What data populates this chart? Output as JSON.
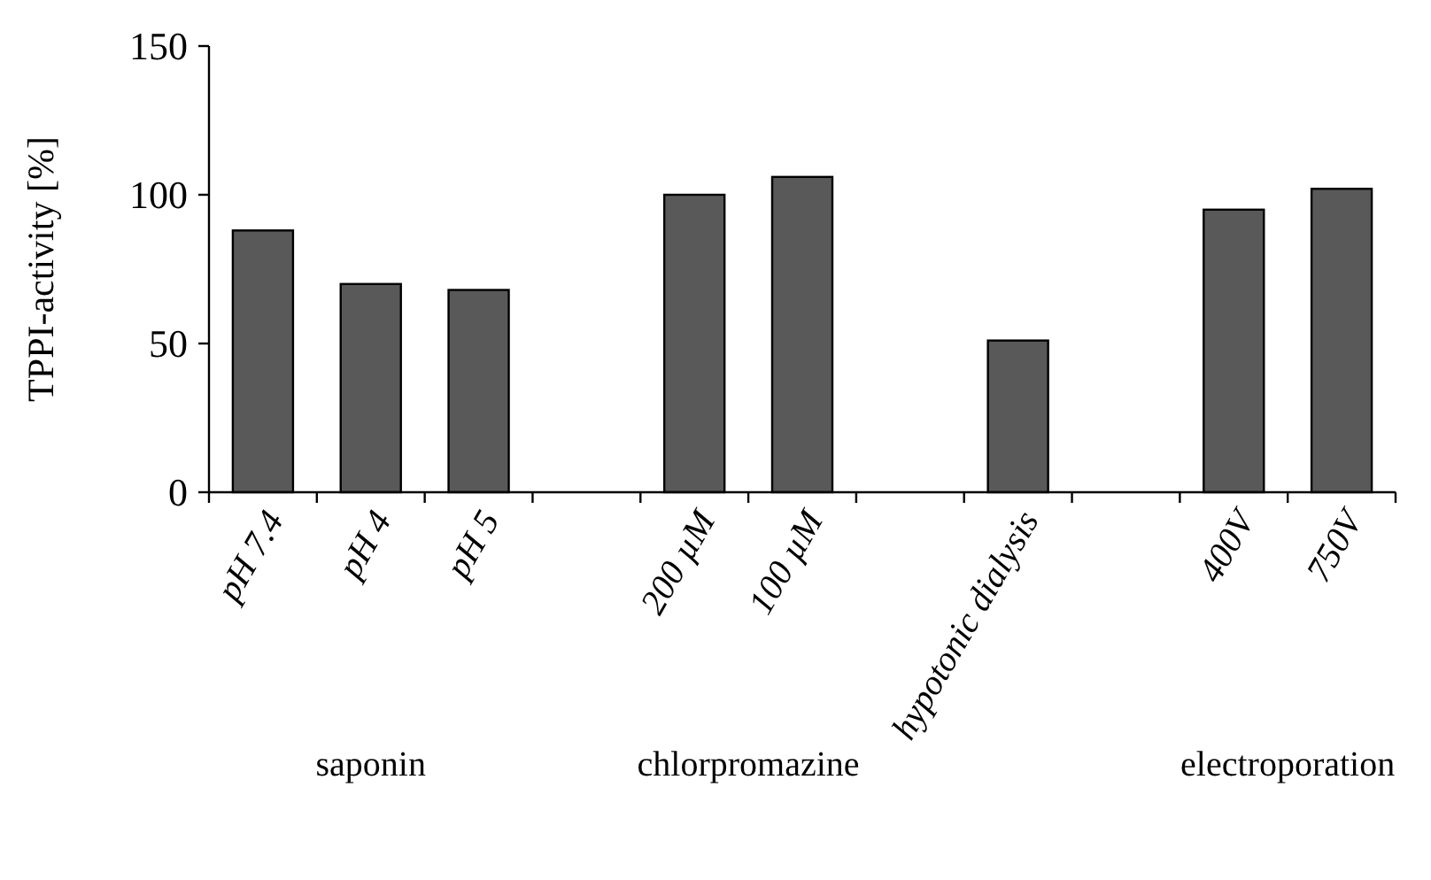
{
  "chart_data": {
    "type": "bar",
    "ylabel": "TPPI-activity [%]",
    "categories": [
      "pH 7.4",
      "pH 4",
      "pH 5",
      null,
      "200 µM",
      "100 µM",
      null,
      "hypotonic dialysis",
      null,
      "400V",
      "750V"
    ],
    "values": [
      88,
      70,
      68,
      null,
      100,
      106,
      null,
      51,
      null,
      95,
      102
    ],
    "color": "#595959",
    "ylim": [
      0,
      150
    ],
    "yticks": [
      0,
      50,
      100,
      150
    ],
    "annotations": [
      "saponin",
      "chlorpromazine",
      "electroporation"
    ]
  }
}
